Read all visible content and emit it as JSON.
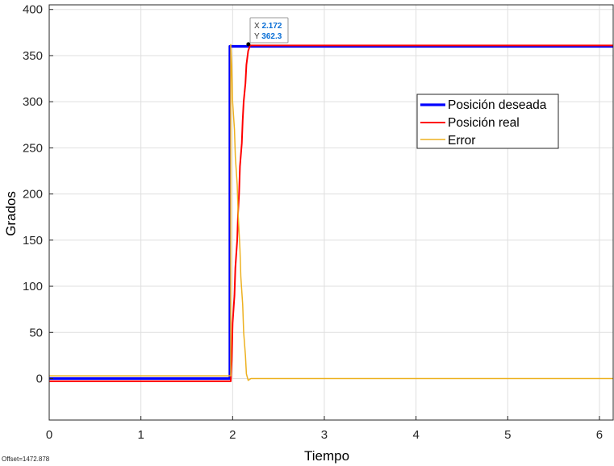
{
  "chart_data": {
    "type": "line",
    "xlabel": "Tiempo",
    "ylabel": "Grados",
    "xlim": [
      0,
      6.15
    ],
    "ylim": [
      -45,
      405
    ],
    "xticks": [
      0,
      1,
      2,
      3,
      4,
      5,
      6
    ],
    "yticks": [
      0,
      50,
      100,
      150,
      200,
      250,
      300,
      350,
      400
    ],
    "grid": true,
    "legend_position": "upper-right-inside",
    "series": [
      {
        "name": "Posición deseada",
        "color": "#0000ff",
        "width": 3.2,
        "points": [
          [
            0,
            0
          ],
          [
            1.97,
            0
          ],
          [
            1.97,
            360
          ],
          [
            6.15,
            360
          ]
        ]
      },
      {
        "name": "Posición real",
        "color": "#ff0000",
        "width": 2,
        "points": [
          [
            0,
            -3
          ],
          [
            1.98,
            -3
          ],
          [
            1.99,
            20
          ],
          [
            2.0,
            60
          ],
          [
            2.02,
            90
          ],
          [
            2.03,
            120
          ],
          [
            2.05,
            150
          ],
          [
            2.06,
            180
          ],
          [
            2.07,
            200
          ],
          [
            2.08,
            230
          ],
          [
            2.1,
            255
          ],
          [
            2.11,
            280
          ],
          [
            2.12,
            300
          ],
          [
            2.14,
            320
          ],
          [
            2.15,
            340
          ],
          [
            2.17,
            355
          ],
          [
            2.19,
            361
          ],
          [
            6.15,
            361
          ]
        ]
      },
      {
        "name": "Error",
        "color": "#edb120",
        "width": 1.5,
        "points": [
          [
            0,
            3
          ],
          [
            1.98,
            3
          ],
          [
            1.98,
            362
          ],
          [
            1.99,
            340
          ],
          [
            2.0,
            300
          ],
          [
            2.02,
            270
          ],
          [
            2.03,
            240
          ],
          [
            2.05,
            210
          ],
          [
            2.06,
            180
          ],
          [
            2.08,
            140
          ],
          [
            2.09,
            110
          ],
          [
            2.11,
            80
          ],
          [
            2.12,
            50
          ],
          [
            2.14,
            25
          ],
          [
            2.15,
            5
          ],
          [
            2.17,
            -2
          ],
          [
            2.2,
            0
          ],
          [
            6.15,
            0
          ]
        ]
      }
    ],
    "datatip": {
      "x_label": "X",
      "x_value": "2.172",
      "y_label": "Y",
      "y_value": "362.3",
      "x": 2.172,
      "y": 362.3
    }
  },
  "footer_text": "Offset=1472.878"
}
